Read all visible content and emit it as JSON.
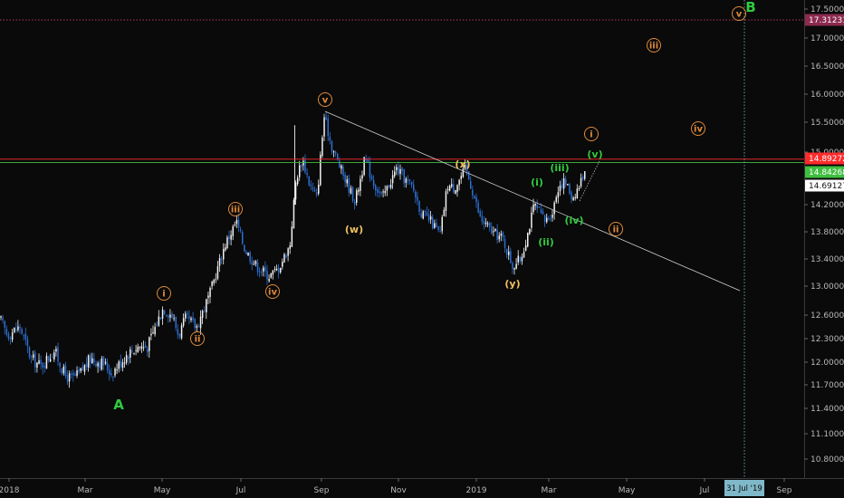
{
  "chart_data": {
    "type": "candlestick",
    "x_axis": {
      "ticks": [
        "2018",
        "Mar",
        "May",
        "Jul",
        "Sep",
        "Nov",
        "2019",
        "Mar",
        "May",
        "Jul",
        "Sep"
      ],
      "cursor_label": "31 Jul '19"
    },
    "y_axis": {
      "range": [
        10.5,
        17.8
      ],
      "ticks": [
        "17.50000",
        "17.00000",
        "16.50000",
        "16.00000",
        "15.50000",
        "15.00000",
        "14.20000",
        "13.80000",
        "13.40000",
        "13.00000",
        "12.60000",
        "12.30000",
        "12.00000",
        "11.70000",
        "11.40000",
        "11.10000",
        "10.80000"
      ]
    },
    "price_lines": [
      {
        "label": "17.31231",
        "value": 17.31231,
        "color": "#e6477a",
        "style": "dotted"
      },
      {
        "label": "14.89272",
        "value": 14.89272,
        "color": "#ff2b2b",
        "style": "solid"
      },
      {
        "label": "14.84268",
        "value": 14.84268,
        "color": "#3fbf3f",
        "style": "solid"
      },
      {
        "label": "14.69127",
        "value": 14.69127,
        "color": "#ffffff",
        "style": "none"
      }
    ],
    "trendline": {
      "from": [
        "Sep 2018",
        15.72
      ],
      "to": [
        "Aug 2019",
        12.95
      ],
      "color": "#cfcfcf"
    },
    "price_series_approx": [
      {
        "x": "Jan 2018",
        "close": 12.4
      },
      {
        "x": "Feb 2018",
        "close": 11.9
      },
      {
        "x": "Mar 2018",
        "close": 11.75
      },
      {
        "x": "Apr 2018",
        "close": 12.2
      },
      {
        "x": "May 2018",
        "close": 12.55
      },
      {
        "x": "Jun 2018",
        "close": 13.6
      },
      {
        "x": "Jul 2018",
        "close": 13.3
      },
      {
        "x": "Aug 2018",
        "close": 14.6
      },
      {
        "x": "Sep 2018",
        "close": 15.55
      },
      {
        "x": "Oct 2018",
        "close": 14.5
      },
      {
        "x": "Nov 2018",
        "close": 14.6
      },
      {
        "x": "Dec 2018",
        "close": 14.1
      },
      {
        "x": "Jan 2019",
        "close": 14.3
      },
      {
        "x": "Feb 2019",
        "close": 13.6
      },
      {
        "x": "Mar 2019",
        "close": 14.35
      },
      {
        "x": "Apr 2019",
        "close": 14.75
      }
    ],
    "wave_labels": [
      {
        "text": "v",
        "color": "#e08a3c",
        "circled": true
      },
      {
        "text": "B",
        "color": "#2ecc40",
        "circled": false
      },
      {
        "text": "iii",
        "color": "#e08a3c",
        "circled": true
      },
      {
        "text": "iv",
        "color": "#e08a3c",
        "circled": true
      },
      {
        "text": "v",
        "color": "#e08a3c",
        "circled": true
      },
      {
        "text": "i",
        "color": "#e08a3c",
        "circled": true
      },
      {
        "text": "(v)",
        "color": "#2ecc40",
        "circled": false
      },
      {
        "text": "(x)",
        "color": "#f0c060",
        "circled": false
      },
      {
        "text": "(iii)",
        "color": "#2ecc40",
        "circled": false
      },
      {
        "text": "(i)",
        "color": "#2ecc40",
        "circled": false
      },
      {
        "text": "(iv)",
        "color": "#2ecc40",
        "circled": false
      },
      {
        "text": "ii",
        "color": "#e08a3c",
        "circled": true
      },
      {
        "text": "iii",
        "color": "#e08a3c",
        "circled": true
      },
      {
        "text": "(w)",
        "color": "#f0c060",
        "circled": false
      },
      {
        "text": "(ii)",
        "color": "#2ecc40",
        "circled": false
      },
      {
        "text": "(y)",
        "color": "#f0c060",
        "circled": false
      },
      {
        "text": "iv",
        "color": "#e08a3c",
        "circled": true
      },
      {
        "text": "i",
        "color": "#e08a3c",
        "circled": true
      },
      {
        "text": "ii",
        "color": "#e08a3c",
        "circled": true
      },
      {
        "text": "A",
        "color": "#2ecc40",
        "circled": false
      }
    ]
  }
}
